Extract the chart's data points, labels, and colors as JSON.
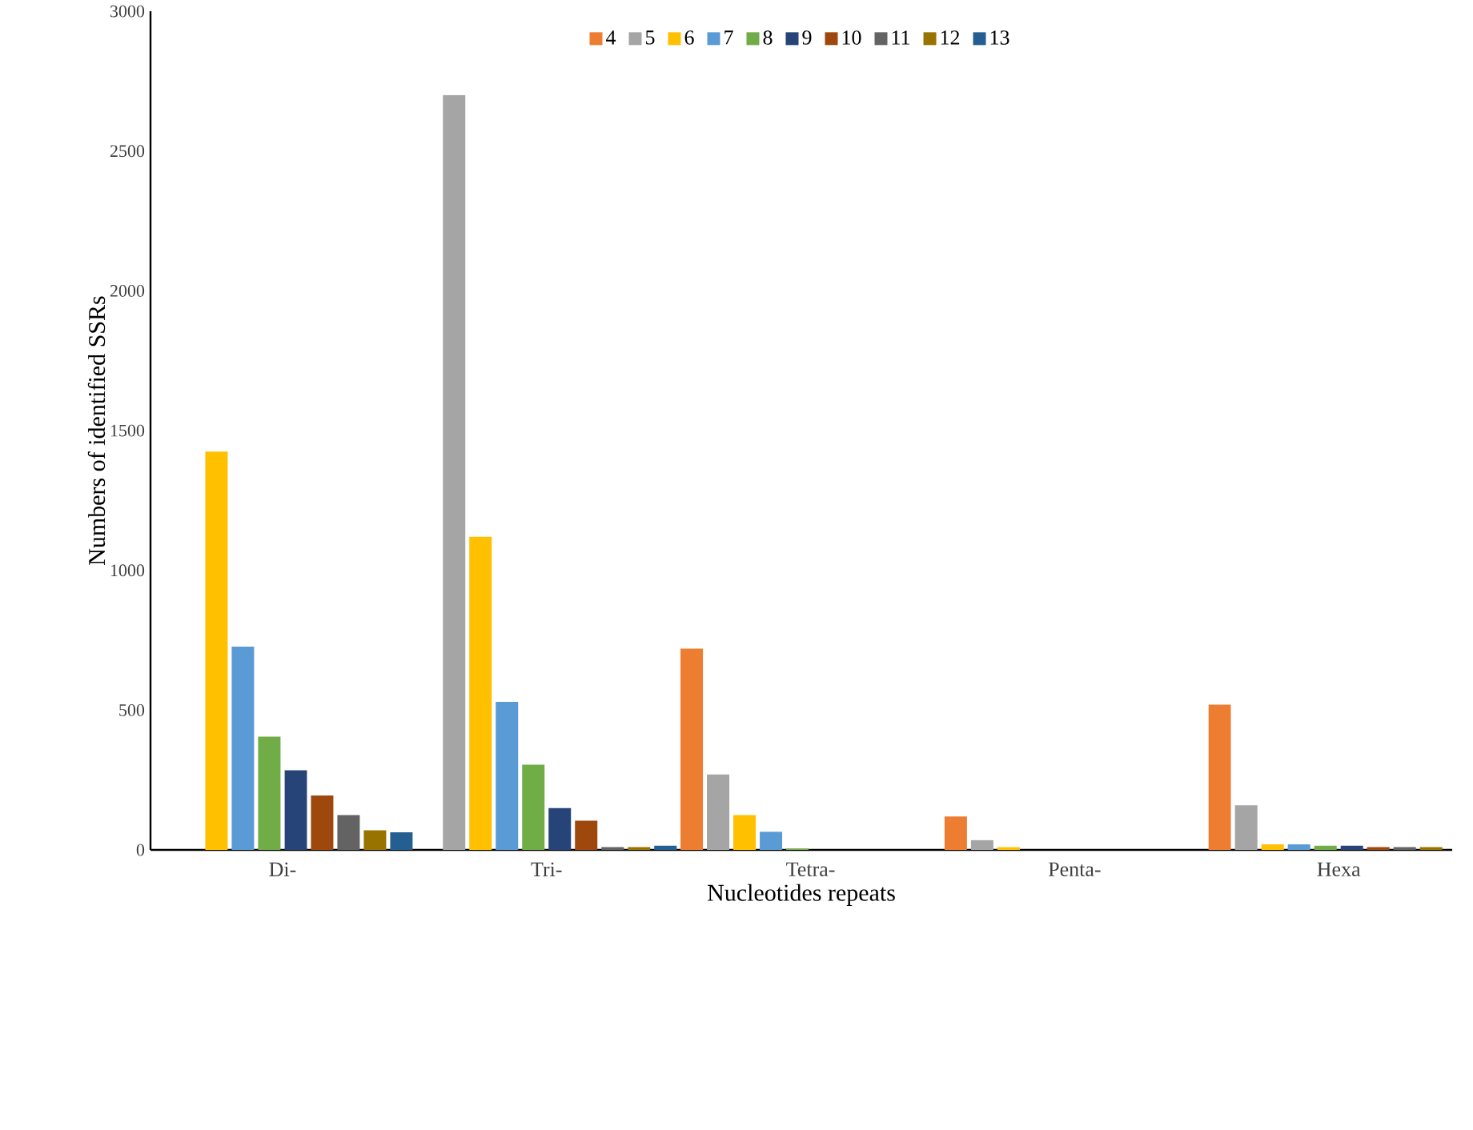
{
  "chart_data": {
    "type": "bar",
    "xlabel": "Nucleotides repeats",
    "ylabel": "Numbers of identified SSRs",
    "categories": [
      "Di-",
      "Tri-",
      "Tetra-",
      "Penta-",
      "Hexa"
    ],
    "series": [
      {
        "name": "4",
        "color": "#ed7d31",
        "values": [
          0,
          0,
          720,
          120,
          520
        ]
      },
      {
        "name": "5",
        "color": "#a5a5a5",
        "values": [
          0,
          2700,
          270,
          35,
          160
        ]
      },
      {
        "name": "6",
        "color": "#ffc000",
        "values": [
          1425,
          1120,
          125,
          10,
          20
        ]
      },
      {
        "name": "7",
        "color": "#5b9bd5",
        "values": [
          727,
          530,
          65,
          0,
          20
        ]
      },
      {
        "name": "8",
        "color": "#70ad47",
        "values": [
          405,
          305,
          5,
          0,
          15
        ]
      },
      {
        "name": "9",
        "color": "#264478",
        "values": [
          285,
          150,
          0,
          0,
          15
        ]
      },
      {
        "name": "10",
        "color": "#9e480e",
        "values": [
          195,
          105,
          0,
          0,
          10
        ]
      },
      {
        "name": "11",
        "color": "#636363",
        "values": [
          125,
          10,
          0,
          0,
          10
        ]
      },
      {
        "name": "12",
        "color": "#997300",
        "values": [
          70,
          10,
          0,
          0,
          10
        ]
      },
      {
        "name": "13",
        "color": "#255e91",
        "values": [
          63,
          15,
          0,
          0,
          0
        ]
      }
    ],
    "ylim": [
      0,
      3000
    ],
    "yticks": [
      0,
      500,
      1000,
      1500,
      2000,
      2500,
      3000
    ],
    "grid": false,
    "legend": "top"
  }
}
